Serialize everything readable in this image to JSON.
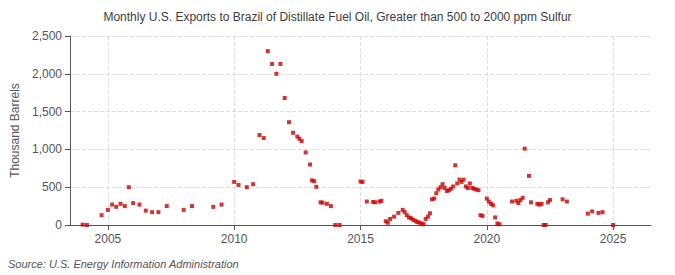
{
  "chart_data": {
    "type": "scatter",
    "title": "Monthly U.S. Exports to Brazil of Distillate Fuel Oil, Greater than 500 to 2000 ppm Sulfur",
    "ylabel": "Thousand Barrels",
    "annotations": [
      "Source: U.S. Energy Information Administration"
    ],
    "color": "#cc0000",
    "marker": "square",
    "grid": true,
    "xlim": [
      2003.5,
      2026.5
    ],
    "xticks": [
      2005,
      2010,
      2015,
      2020,
      2025
    ],
    "ylim": [
      0,
      2500
    ],
    "yticks": [
      0,
      500,
      {
        "value": 1000,
        "label": "1,000"
      },
      {
        "value": 1500,
        "label": "1,500"
      },
      {
        "value": 2000,
        "label": "2,000"
      },
      {
        "value": 2500,
        "label": "2,500"
      }
    ],
    "x": [
      2004.0,
      2004.17,
      2004.75,
      2005.0,
      2005.17,
      2005.33,
      2005.5,
      2005.67,
      2005.83,
      2006.0,
      2006.25,
      2006.5,
      2006.75,
      2007.0,
      2007.33,
      2008.0,
      2008.33,
      2009.17,
      2009.5,
      2010.0,
      2010.17,
      2010.5,
      2010.75,
      2011.0,
      2011.17,
      2011.33,
      2011.5,
      2011.67,
      2011.83,
      2012.0,
      2012.17,
      2012.33,
      2012.5,
      2012.58,
      2012.67,
      2012.83,
      2013.0,
      2013.08,
      2013.17,
      2013.25,
      2013.42,
      2013.5,
      2013.67,
      2013.83,
      2014.0,
      2014.17,
      2015.0,
      2015.08,
      2015.25,
      2015.5,
      2015.58,
      2015.75,
      2015.83,
      2016.0,
      2016.08,
      2016.17,
      2016.33,
      2016.5,
      2016.67,
      2016.75,
      2016.83,
      2016.92,
      2017.0,
      2017.08,
      2017.17,
      2017.25,
      2017.33,
      2017.42,
      2017.5,
      2017.58,
      2017.67,
      2017.75,
      2017.83,
      2017.92,
      2018.0,
      2018.08,
      2018.17,
      2018.25,
      2018.33,
      2018.42,
      2018.5,
      2018.58,
      2018.67,
      2018.75,
      2018.83,
      2018.92,
      2019.0,
      2019.08,
      2019.17,
      2019.25,
      2019.33,
      2019.42,
      2019.5,
      2019.58,
      2019.67,
      2019.75,
      2019.83,
      2020.0,
      2020.08,
      2020.17,
      2020.25,
      2020.33,
      2020.42,
      2020.5,
      2021.0,
      2021.17,
      2021.25,
      2021.33,
      2021.42,
      2021.5,
      2021.67,
      2021.75,
      2022.0,
      2022.08,
      2022.17,
      2022.25,
      2022.33,
      2022.42,
      2022.5,
      2023.0,
      2023.17,
      2024.0,
      2024.17,
      2024.42,
      2024.58,
      2025.0
    ],
    "values": [
      5,
      0,
      130,
      200,
      270,
      240,
      280,
      250,
      500,
      290,
      270,
      190,
      170,
      170,
      250,
      200,
      250,
      240,
      270,
      570,
      530,
      500,
      540,
      1190,
      1150,
      2300,
      2130,
      2000,
      2130,
      1680,
      1360,
      1220,
      1170,
      1140,
      1110,
      960,
      800,
      590,
      580,
      505,
      300,
      295,
      280,
      250,
      0,
      0,
      575,
      570,
      310,
      305,
      300,
      310,
      320,
      50,
      30,
      80,
      110,
      160,
      200,
      170,
      130,
      100,
      90,
      70,
      55,
      40,
      30,
      20,
      10,
      80,
      110,
      155,
      340,
      350,
      420,
      470,
      500,
      540,
      490,
      450,
      460,
      480,
      510,
      790,
      550,
      600,
      570,
      600,
      510,
      490,
      550,
      490,
      480,
      470,
      460,
      130,
      120,
      350,
      310,
      280,
      260,
      100,
      20,
      10,
      310,
      320,
      290,
      330,
      360,
      1010,
      650,
      300,
      280,
      270,
      280,
      0,
      0,
      300,
      330,
      340,
      310,
      150,
      180,
      160,
      170,
      0
    ]
  }
}
